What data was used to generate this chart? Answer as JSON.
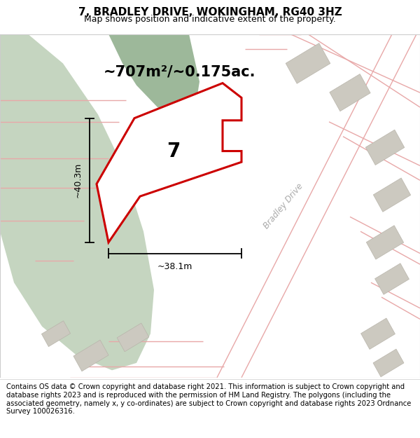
{
  "title": "7, BRADLEY DRIVE, WOKINGHAM, RG40 3HZ",
  "subtitle": "Map shows position and indicative extent of the property.",
  "footer": "Contains OS data © Crown copyright and database right 2021. This information is subject to Crown copyright and database rights 2023 and is reproduced with the permission of HM Land Registry. The polygons (including the associated geometry, namely x, y co-ordinates) are subject to Crown copyright and database rights 2023 Ordnance Survey 100026316.",
  "area_label": "~707m²/~0.175ac.",
  "number_label": "7",
  "dim_horiz": "~38.1m",
  "dim_vert": "~40.3m",
  "road_label": "Bradley Drive",
  "map_bg": "#f2f0eb",
  "green_area_color": "#c5d5c0",
  "dark_green_area_color": "#9db89a",
  "building_color": "#ccc9c0",
  "building_edge": "#b8b4aa",
  "red_line_color": "#cc0000",
  "pink_line_color": "#e8a8a8",
  "property_fill": "#ffffff",
  "title_fontsize": 11,
  "subtitle_fontsize": 9,
  "footer_fontsize": 7.2,
  "map_border_color": "#cccccc",
  "white": "#ffffff"
}
